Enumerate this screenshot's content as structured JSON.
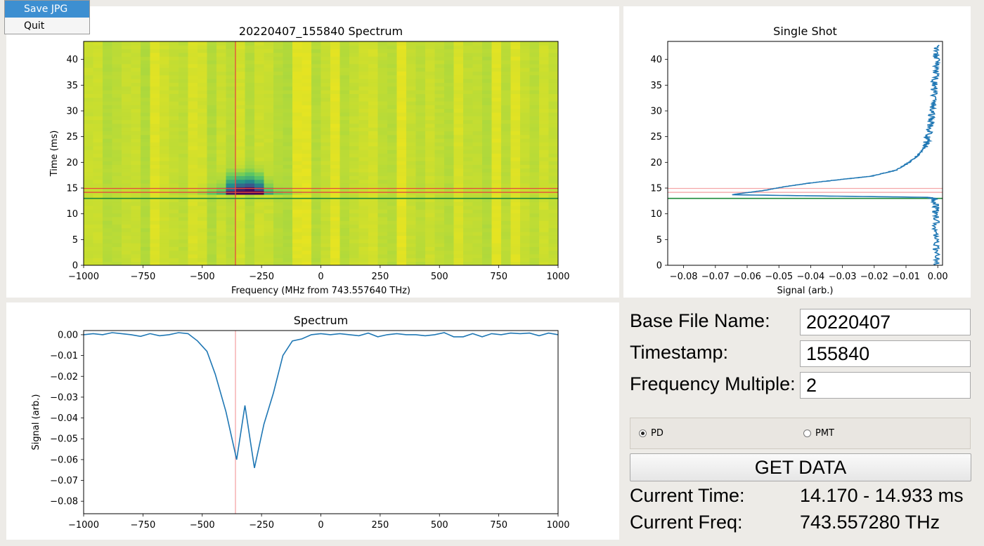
{
  "menu": {
    "items": [
      "Save JPG",
      "Quit"
    ]
  },
  "form": {
    "base_file_name_label": "Base File Name:",
    "base_file_name_value": "20220407",
    "timestamp_label": "Timestamp:",
    "timestamp_value": "155840",
    "frequency_multiple_label": "Frequency Multiple:",
    "frequency_multiple_value": "2",
    "radio_pd": "PD",
    "radio_pmt": "PMT",
    "radio_selected": "PD",
    "get_data_label": "GET DATA",
    "current_time_label": "Current Time:",
    "current_time_value": "14.170 - 14.933 ms",
    "current_freq_label": "Current Freq:",
    "current_freq_value": "743.557280 THz"
  },
  "chart_data": [
    {
      "type": "heatmap",
      "title": "20220407_155840 Spectrum",
      "xlabel": "Frequency (MHz from 743.557640 THz)",
      "ylabel": "Time (ms)",
      "xlim": [
        -1000,
        1000
      ],
      "ylim": [
        0,
        43.5
      ],
      "xticks": [
        -1000,
        -750,
        -500,
        -250,
        0,
        250,
        500,
        750,
        1000
      ],
      "yticks": [
        0,
        5,
        10,
        15,
        20,
        25,
        30,
        35,
        40
      ],
      "dips": [
        {
          "freq": -355,
          "depth": 0.06
        },
        {
          "freq": -280,
          "depth": 0.064
        }
      ],
      "dip_time_range": [
        13.5,
        22
      ],
      "markers": {
        "vline_freq": -360,
        "hlines_red": [
          14.17,
          14.93
        ],
        "hline_green": 13.0
      },
      "colors": {
        "low": "#440154",
        "high": "#f2e61c",
        "red": "#e84a3c",
        "green": "#1f8a3a"
      }
    },
    {
      "type": "line",
      "title": "Single Shot",
      "xlabel": "Signal (arb.)",
      "ylabel": "",
      "xlim": [
        -0.085,
        0.0015
      ],
      "ylim": [
        0,
        43.5
      ],
      "xticks": [
        -0.08,
        -0.07,
        -0.06,
        -0.05,
        -0.04,
        -0.03,
        -0.02,
        -0.01,
        0.0
      ],
      "yticks": [
        0,
        5,
        10,
        15,
        20,
        25,
        30,
        35,
        40
      ],
      "trace": {
        "signal": [
          -0.0005,
          -0.0005,
          -0.0005,
          -0.001,
          -0.003,
          -0.065,
          -0.055,
          -0.048,
          -0.04,
          -0.03,
          -0.021,
          -0.013,
          -0.009,
          -0.006,
          -0.004,
          -0.003,
          -0.002,
          -0.0015,
          -0.001,
          -0.0005,
          -0.0005
        ],
        "time": [
          0,
          5,
          10,
          12.9,
          13.2,
          13.7,
          14.5,
          15.3,
          16.0,
          16.7,
          17.3,
          18.5,
          20,
          21.5,
          23,
          25,
          28,
          31,
          35,
          39,
          43
        ]
      },
      "markers": {
        "hlines_red": [
          14.17,
          14.93
        ],
        "hline_green": 13.0
      },
      "colors": {
        "line": "#1f77b4",
        "red": "#f4a6a8",
        "green": "#1f8a3a"
      }
    },
    {
      "type": "line",
      "title": "Spectrum",
      "xlabel": "",
      "ylabel": "Signal (arb.)",
      "xlim": [
        -1000,
        1000
      ],
      "ylim": [
        -0.086,
        0.002
      ],
      "xticks": [
        -1000,
        -750,
        -500,
        -250,
        0,
        250,
        500,
        750,
        1000
      ],
      "yticks": [
        0.0,
        -0.01,
        -0.02,
        -0.03,
        -0.04,
        -0.05,
        -0.06,
        -0.07,
        -0.08
      ],
      "ytick_labels": [
        "0.00",
        "−0.01",
        "−0.02",
        "−0.03",
        "−0.04",
        "−0.05",
        "−0.06",
        "−0.07",
        "−0.08"
      ],
      "x": [
        -1000,
        -960,
        -920,
        -880,
        -840,
        -800,
        -760,
        -720,
        -680,
        -640,
        -600,
        -560,
        -520,
        -480,
        -445,
        -400,
        -355,
        -320,
        -280,
        -240,
        -200,
        -160,
        -120,
        -80,
        -40,
        0,
        40,
        80,
        120,
        160,
        200,
        240,
        280,
        320,
        360,
        400,
        440,
        480,
        520,
        560,
        600,
        640,
        680,
        720,
        760,
        800,
        840,
        880,
        920,
        960,
        1000
      ],
      "y": [
        0,
        0.0005,
        0,
        0.001,
        0.0005,
        0,
        -0.0008,
        0.0005,
        -0.0005,
        0,
        0.001,
        0.0005,
        -0.003,
        -0.008,
        -0.019,
        -0.037,
        -0.06,
        -0.034,
        -0.064,
        -0.043,
        -0.028,
        -0.01,
        -0.003,
        -0.002,
        0,
        0.0005,
        0,
        0.0005,
        0,
        -0.0005,
        0.0008,
        -0.001,
        0,
        0.0005,
        0,
        0,
        -0.0005,
        0,
        0.001,
        -0.001,
        -0.001,
        0.0005,
        -0.001,
        0.0005,
        0,
        0.0008,
        0.0005,
        0.0008,
        -0.0005,
        0.0008,
        0
      ],
      "markers": {
        "vline_freq": -360
      },
      "colors": {
        "line": "#1f77b4",
        "red": "#f4a6a8"
      }
    }
  ]
}
